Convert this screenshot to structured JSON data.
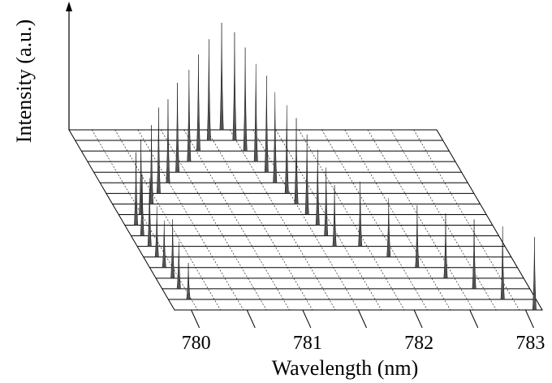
{
  "chart_data": {
    "type": "waterfall",
    "xlabel": "Wavelength (nm)",
    "ylabel": "Intensity (a.u.)",
    "x_ticks": [
      "780",
      "781",
      "782",
      "783"
    ],
    "xlim": [
      779.85,
      783.15
    ],
    "ylim": [
      0,
      1
    ],
    "grid": true,
    "series": [
      {
        "peaks": [
          {
            "x": 783.08,
            "y": 0.62
          }
        ]
      },
      {
        "peaks": [
          {
            "x": 780.03,
            "y": 0.31
          },
          {
            "x": 782.85,
            "y": 0.62
          }
        ]
      },
      {
        "peaks": [
          {
            "x": 780.0,
            "y": 0.4
          },
          {
            "x": 782.65,
            "y": 0.59
          }
        ]
      },
      {
        "peaks": [
          {
            "x": 780.0,
            "y": 0.5
          },
          {
            "x": 782.45,
            "y": 0.55
          }
        ]
      },
      {
        "peaks": [
          {
            "x": 779.98,
            "y": 0.4
          },
          {
            "x": 782.25,
            "y": 0.53
          }
        ]
      },
      {
        "peaks": [
          {
            "x": 779.97,
            "y": 0.43
          },
          {
            "x": 782.05,
            "y": 0.5
          }
        ]
      },
      {
        "peaks": [
          {
            "x": 779.96,
            "y": 0.58
          },
          {
            "x": 781.62,
            "y": 0.52
          },
          {
            "x": 781.85,
            "y": 0.55
          }
        ]
      },
      {
        "peaks": [
          {
            "x": 779.95,
            "y": 0.52
          },
          {
            "x": 781.6,
            "y": 0.58
          }
        ]
      },
      {
        "peaks": [
          {
            "x": 779.95,
            "y": 0.62
          },
          {
            "x": 781.58,
            "y": 0.64
          }
        ]
      },
      {
        "peaks": [
          {
            "x": 780.05,
            "y": 0.64
          },
          {
            "x": 781.54,
            "y": 0.68
          }
        ]
      },
      {
        "peaks": [
          {
            "x": 780.2,
            "y": 0.67
          },
          {
            "x": 781.5,
            "y": 0.73
          }
        ]
      },
      {
        "peaks": [
          {
            "x": 780.32,
            "y": 0.73
          },
          {
            "x": 781.47,
            "y": 0.75
          }
        ]
      },
      {
        "peaks": [
          {
            "x": 780.46,
            "y": 0.71
          },
          {
            "x": 781.42,
            "y": 0.77
          }
        ]
      },
      {
        "peaks": [
          {
            "x": 780.6,
            "y": 0.76
          },
          {
            "x": 781.4,
            "y": 0.82
          }
        ]
      },
      {
        "peaks": [
          {
            "x": 780.76,
            "y": 0.78
          },
          {
            "x": 781.36,
            "y": 0.83
          }
        ]
      },
      {
        "peaks": [
          {
            "x": 780.9,
            "y": 0.82
          },
          {
            "x": 781.32,
            "y": 0.88
          }
        ]
      },
      {
        "peaks": [
          {
            "x": 781.05,
            "y": 0.86
          },
          {
            "x": 781.28,
            "y": 0.92
          }
        ]
      },
      {
        "peaks": [
          {
            "x": 781.22,
            "y": 0.91
          }
        ]
      }
    ]
  }
}
